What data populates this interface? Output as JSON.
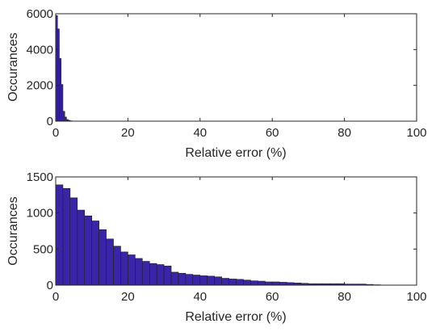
{
  "chart_data": [
    {
      "type": "bar",
      "xlabel": "Relative error (%)",
      "ylabel": "Occurances",
      "xlim": [
        0,
        100
      ],
      "ylim": [
        0,
        6000
      ],
      "xticks": [
        "0",
        "20",
        "40",
        "60",
        "80",
        "100"
      ],
      "yticks": [
        "0",
        "2000",
        "4000",
        "6000"
      ],
      "grid": false,
      "bar_color": "#3a24a8",
      "bin_width": 0.5,
      "bin_starts": [
        0,
        0.5,
        1,
        1.5,
        2,
        2.5,
        3,
        3.5,
        4,
        4.5,
        5
      ],
      "values": [
        5900,
        5150,
        3500,
        2050,
        550,
        230,
        90,
        45,
        20,
        10,
        5
      ]
    },
    {
      "type": "bar",
      "xlabel": "Relative error (%)",
      "ylabel": "Occurances",
      "xlim": [
        0,
        100
      ],
      "ylim": [
        0,
        1500
      ],
      "xticks": [
        "0",
        "20",
        "40",
        "60",
        "80",
        "100"
      ],
      "yticks": [
        "0",
        "500",
        "1000",
        "1500"
      ],
      "grid": false,
      "bar_color": "#3a24a8",
      "bin_width": 2,
      "bin_starts": [
        0,
        2,
        4,
        6,
        8,
        10,
        12,
        14,
        16,
        18,
        20,
        22,
        24,
        26,
        28,
        30,
        32,
        34,
        36,
        38,
        40,
        42,
        44,
        46,
        48,
        50,
        52,
        54,
        56,
        58,
        60,
        62,
        64,
        66,
        68,
        70,
        72,
        74,
        76,
        78,
        80,
        82,
        84,
        86,
        88
      ],
      "values": [
        1390,
        1340,
        1210,
        1040,
        960,
        890,
        770,
        640,
        540,
        460,
        420,
        370,
        330,
        300,
        285,
        265,
        180,
        165,
        150,
        140,
        130,
        125,
        115,
        95,
        85,
        80,
        70,
        60,
        55,
        45,
        45,
        40,
        35,
        30,
        25,
        20,
        20,
        20,
        20,
        20,
        15,
        15,
        15,
        10,
        5
      ]
    }
  ]
}
